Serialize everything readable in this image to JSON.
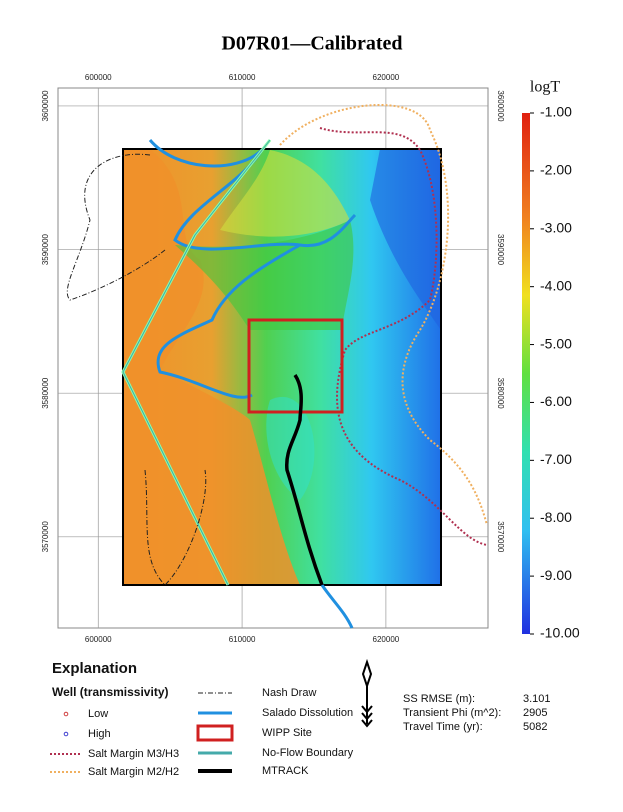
{
  "title": "D07R01—Calibrated",
  "map": {
    "xlim": [
      597200,
      627100
    ],
    "ylim": [
      3563650,
      3601250
    ],
    "xticks": [
      600000,
      610000,
      620000
    ],
    "yticks": [
      3570000,
      3580000,
      3590000,
      3600000
    ],
    "grid": true
  },
  "colorbar": {
    "title": "logT",
    "range": [
      -10,
      -1
    ],
    "ticks": [
      {
        "value": -1,
        "label": "-1.00"
      },
      {
        "value": -2,
        "label": "-2.00"
      },
      {
        "value": -3,
        "label": "-3.00"
      },
      {
        "value": -4,
        "label": "-4.00"
      },
      {
        "value": -5,
        "label": "-5.00"
      },
      {
        "value": -6,
        "label": "-6.00"
      },
      {
        "value": -7,
        "label": "-7.00"
      },
      {
        "value": -8,
        "label": "-8.00"
      },
      {
        "value": -9,
        "label": "-9.00"
      },
      {
        "value": -10,
        "label": "-10.00"
      }
    ]
  },
  "legend": {
    "title": "Explanation",
    "well_title": "Well (transmissivity)",
    "items": [
      "Low",
      "High",
      "Salt Margin M3/H3",
      "Salt Margin M2/H2",
      "Nash Draw",
      "Salado Dissolution",
      "WIPP Site",
      "No-Flow Boundary",
      "MTRACK"
    ]
  },
  "stats": [
    {
      "label": "SS RMSE (m):",
      "value": 3.101
    },
    {
      "label": "Transient Phi (m^2):",
      "value": 2905
    },
    {
      "label": "Travel Time (yr):",
      "value": 5082
    }
  ]
}
